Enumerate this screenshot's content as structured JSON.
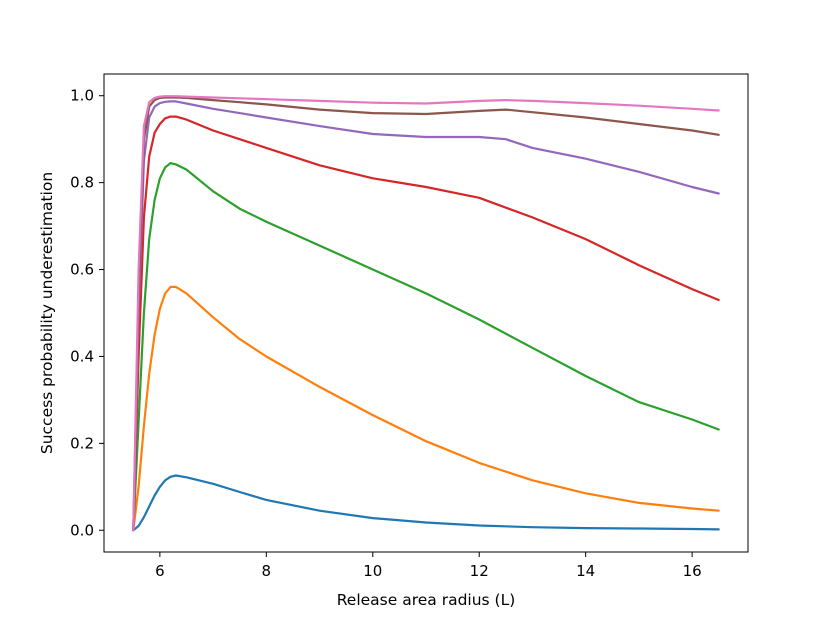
{
  "chart_data": {
    "type": "line",
    "title": "",
    "xlabel": "Release area radius (L)",
    "ylabel": "Success probability underestimation",
    "xlim": [
      4.95,
      17.05
    ],
    "ylim": [
      -0.05,
      1.05
    ],
    "xticks": [
      6,
      8,
      10,
      12,
      14,
      16
    ],
    "yticks": [
      0.0,
      0.2,
      0.4,
      0.6,
      0.8,
      1.0
    ],
    "xtick_labels": [
      "6",
      "8",
      "10",
      "12",
      "14",
      "16"
    ],
    "ytick_labels": [
      "0.0",
      "0.2",
      "0.4",
      "0.6",
      "0.8",
      "1.0"
    ],
    "grid": false,
    "legend": "none",
    "series": [
      {
        "color": "#1f77b4",
        "x": [
          5.5,
          5.6,
          5.7,
          5.8,
          5.9,
          6.0,
          6.1,
          6.2,
          6.3,
          6.5,
          7.0,
          7.5,
          8.0,
          9.0,
          10.0,
          11.0,
          12.0,
          13.0,
          14.0,
          15.0,
          16.0,
          16.5
        ],
        "y": [
          0.0,
          0.01,
          0.03,
          0.055,
          0.08,
          0.1,
          0.115,
          0.123,
          0.126,
          0.122,
          0.107,
          0.088,
          0.07,
          0.045,
          0.028,
          0.018,
          0.011,
          0.007,
          0.005,
          0.004,
          0.003,
          0.002
        ]
      },
      {
        "color": "#ff7f0e",
        "x": [
          5.5,
          5.6,
          5.7,
          5.8,
          5.9,
          6.0,
          6.1,
          6.2,
          6.3,
          6.5,
          7.0,
          7.5,
          8.0,
          9.0,
          10.0,
          11.0,
          12.0,
          13.0,
          14.0,
          15.0,
          16.0,
          16.5
        ],
        "y": [
          0.0,
          0.1,
          0.24,
          0.36,
          0.45,
          0.51,
          0.545,
          0.56,
          0.56,
          0.545,
          0.49,
          0.44,
          0.4,
          0.33,
          0.265,
          0.205,
          0.155,
          0.115,
          0.085,
          0.063,
          0.05,
          0.045
        ]
      },
      {
        "color": "#2ca02c",
        "x": [
          5.5,
          5.6,
          5.7,
          5.8,
          5.9,
          6.0,
          6.1,
          6.2,
          6.3,
          6.5,
          7.0,
          7.5,
          8.0,
          9.0,
          10.0,
          11.0,
          12.0,
          13.0,
          14.0,
          15.0,
          16.0,
          16.5
        ],
        "y": [
          0.0,
          0.25,
          0.5,
          0.67,
          0.76,
          0.81,
          0.835,
          0.845,
          0.842,
          0.83,
          0.78,
          0.74,
          0.71,
          0.655,
          0.6,
          0.545,
          0.485,
          0.42,
          0.355,
          0.295,
          0.255,
          0.232
        ]
      },
      {
        "color": "#d62728",
        "x": [
          5.5,
          5.6,
          5.7,
          5.8,
          5.9,
          6.0,
          6.1,
          6.2,
          6.3,
          6.5,
          7.0,
          7.5,
          8.0,
          9.0,
          10.0,
          11.0,
          12.0,
          13.0,
          14.0,
          15.0,
          16.0,
          16.5
        ],
        "y": [
          0.0,
          0.4,
          0.72,
          0.86,
          0.915,
          0.935,
          0.948,
          0.952,
          0.952,
          0.945,
          0.92,
          0.9,
          0.88,
          0.84,
          0.81,
          0.79,
          0.765,
          0.72,
          0.67,
          0.61,
          0.555,
          0.53
        ]
      },
      {
        "color": "#9467bd",
        "x": [
          5.5,
          5.6,
          5.7,
          5.8,
          5.9,
          6.0,
          6.1,
          6.2,
          6.3,
          6.5,
          7.0,
          7.5,
          8.0,
          9.0,
          10.0,
          11.0,
          12.0,
          12.5,
          13.0,
          14.0,
          15.0,
          16.0,
          16.5
        ],
        "y": [
          0.0,
          0.5,
          0.85,
          0.95,
          0.975,
          0.983,
          0.986,
          0.987,
          0.987,
          0.982,
          0.97,
          0.96,
          0.95,
          0.93,
          0.912,
          0.905,
          0.905,
          0.9,
          0.88,
          0.855,
          0.825,
          0.79,
          0.775
        ]
      },
      {
        "color": "#8c564b",
        "x": [
          5.5,
          5.6,
          5.7,
          5.8,
          5.9,
          6.0,
          6.1,
          6.2,
          6.3,
          6.5,
          7.0,
          7.5,
          8.0,
          9.0,
          10.0,
          11.0,
          12.0,
          12.5,
          13.0,
          14.0,
          15.0,
          16.0,
          16.5
        ],
        "y": [
          0.0,
          0.55,
          0.9,
          0.975,
          0.99,
          0.995,
          0.996,
          0.996,
          0.996,
          0.995,
          0.99,
          0.985,
          0.98,
          0.968,
          0.96,
          0.958,
          0.965,
          0.968,
          0.962,
          0.95,
          0.935,
          0.92,
          0.91
        ]
      },
      {
        "color": "#e377c2",
        "x": [
          5.5,
          5.6,
          5.7,
          5.8,
          5.9,
          6.0,
          6.1,
          6.2,
          6.3,
          6.5,
          7.0,
          7.5,
          8.0,
          9.0,
          10.0,
          11.0,
          12.0,
          12.5,
          13.0,
          14.0,
          15.0,
          16.0,
          16.5
        ],
        "y": [
          0.0,
          0.6,
          0.93,
          0.985,
          0.995,
          0.998,
          0.999,
          0.999,
          0.999,
          0.998,
          0.996,
          0.994,
          0.992,
          0.988,
          0.984,
          0.982,
          0.988,
          0.99,
          0.988,
          0.983,
          0.977,
          0.97,
          0.966
        ]
      }
    ]
  }
}
